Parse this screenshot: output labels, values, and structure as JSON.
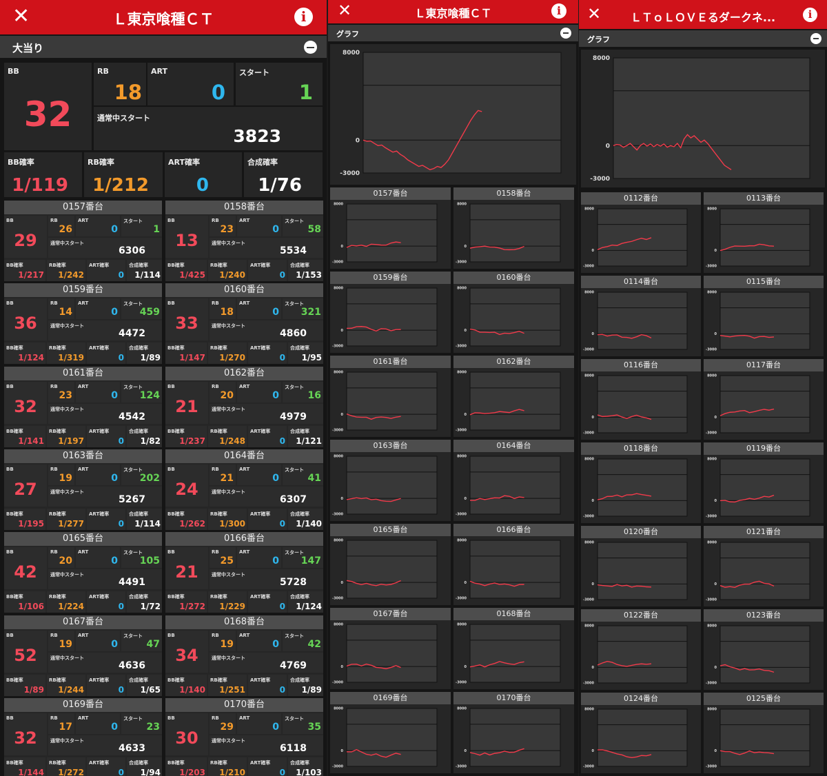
{
  "panel1": {
    "title": "Ｌ東京喰種ＣＴ",
    "section": "大当り",
    "main": {
      "bb_label": "BB",
      "bb": "32",
      "rb_label": "RB",
      "rb": "18",
      "art_label": "ART",
      "art": "0",
      "start_label": "スタート",
      "start": "1",
      "normal_label": "通常中スタート",
      "normal": "3823",
      "bbp_label": "BB確率",
      "bbp": "1/119",
      "rbp_label": "RB確率",
      "rbp": "1/212",
      "artp_label": "ART確率",
      "artp": "0",
      "synp_label": "合成確率",
      "synp": "1/76"
    },
    "machines": [
      {
        "name": "0157番台",
        "bb": "29",
        "rb": "26",
        "art": "0",
        "start": "1",
        "normal": "6306",
        "bbp": "1/217",
        "rbp": "1/242",
        "artp": "0",
        "synp": "1/114"
      },
      {
        "name": "0158番台",
        "bb": "13",
        "rb": "23",
        "art": "0",
        "start": "58",
        "normal": "5534",
        "bbp": "1/425",
        "rbp": "1/240",
        "artp": "0",
        "synp": "1/153"
      },
      {
        "name": "0159番台",
        "bb": "36",
        "rb": "14",
        "art": "0",
        "start": "459",
        "normal": "4472",
        "bbp": "1/124",
        "rbp": "1/319",
        "artp": "0",
        "synp": "1/89"
      },
      {
        "name": "0160番台",
        "bb": "33",
        "rb": "18",
        "art": "0",
        "start": "321",
        "normal": "4860",
        "bbp": "1/147",
        "rbp": "1/270",
        "artp": "0",
        "synp": "1/95"
      },
      {
        "name": "0161番台",
        "bb": "32",
        "rb": "23",
        "art": "0",
        "start": "124",
        "normal": "4542",
        "bbp": "1/141",
        "rbp": "1/197",
        "artp": "0",
        "synp": "1/82"
      },
      {
        "name": "0162番台",
        "bb": "21",
        "rb": "20",
        "art": "0",
        "start": "16",
        "normal": "4979",
        "bbp": "1/237",
        "rbp": "1/248",
        "artp": "0",
        "synp": "1/121"
      },
      {
        "name": "0163番台",
        "bb": "27",
        "rb": "19",
        "art": "0",
        "start": "202",
        "normal": "5267",
        "bbp": "1/195",
        "rbp": "1/277",
        "artp": "0",
        "synp": "1/114"
      },
      {
        "name": "0164番台",
        "bb": "24",
        "rb": "21",
        "art": "0",
        "start": "41",
        "normal": "6307",
        "bbp": "1/262",
        "rbp": "1/300",
        "artp": "0",
        "synp": "1/140"
      },
      {
        "name": "0165番台",
        "bb": "42",
        "rb": "20",
        "art": "0",
        "start": "105",
        "normal": "4491",
        "bbp": "1/106",
        "rbp": "1/224",
        "artp": "0",
        "synp": "1/72"
      },
      {
        "name": "0166番台",
        "bb": "21",
        "rb": "25",
        "art": "0",
        "start": "147",
        "normal": "5728",
        "bbp": "1/272",
        "rbp": "1/229",
        "artp": "0",
        "synp": "1/124"
      },
      {
        "name": "0167番台",
        "bb": "52",
        "rb": "19",
        "art": "0",
        "start": "47",
        "normal": "4636",
        "bbp": "1/89",
        "rbp": "1/244",
        "artp": "0",
        "synp": "1/65"
      },
      {
        "name": "0168番台",
        "bb": "34",
        "rb": "19",
        "art": "0",
        "start": "42",
        "normal": "4769",
        "bbp": "1/140",
        "rbp": "1/251",
        "artp": "0",
        "synp": "1/89"
      },
      {
        "name": "0169番台",
        "bb": "32",
        "rb": "17",
        "art": "0",
        "start": "23",
        "normal": "4633",
        "bbp": "1/144",
        "rbp": "1/272",
        "artp": "0",
        "synp": "1/94"
      },
      {
        "name": "0170番台",
        "bb": "30",
        "rb": "29",
        "art": "0",
        "start": "35",
        "normal": "6118",
        "bbp": "1/203",
        "rbp": "1/210",
        "artp": "0",
        "synp": "1/103"
      }
    ],
    "mini_labels": {
      "bb": "BB",
      "rb": "RB",
      "art": "ART",
      "start": "スタート",
      "normal": "通常中スタート",
      "bbp": "BB確率",
      "rbp": "RB確率",
      "artp": "ART確率",
      "synp": "合成確率"
    }
  },
  "panel2": {
    "title": "Ｌ東京喰種ＣＴ",
    "section": "グラフ",
    "chart_data": {
      "type": "line",
      "ylim": [
        -3000,
        8000
      ],
      "ticks": [
        "8000",
        "0",
        "-3000"
      ],
      "series": [
        {
          "values": [
            0,
            -100,
            -80,
            -300,
            -500,
            -450,
            -700,
            -900,
            -1100,
            -1000,
            -1300,
            -1500,
            -1800,
            -2000,
            -2200,
            -2400,
            -2300,
            -2500,
            -2700,
            -2600,
            -2400,
            -2500,
            -2200,
            -1800,
            -1200,
            -600,
            0,
            600,
            1200,
            1800,
            2300,
            2700,
            2600
          ]
        }
      ]
    },
    "machines": [
      "0157番台",
      "0158番台",
      "0159番台",
      "0160番台",
      "0161番台",
      "0162番台",
      "0163番台",
      "0164番台",
      "0165番台",
      "0166番台",
      "0167番台",
      "0168番台",
      "0169番台",
      "0170番台"
    ],
    "mini_ticks": [
      "8000",
      "0",
      "-3000"
    ]
  },
  "panel3": {
    "title": "ＬＴｏＬＯＶＥるダークネ...",
    "section": "グラフ",
    "chart_data": {
      "type": "line",
      "ylim": [
        -3000,
        8000
      ],
      "ticks": [
        "8000",
        "0",
        "-3000"
      ],
      "series": [
        {
          "values": [
            0,
            100,
            50,
            -150,
            0,
            200,
            -100,
            -400,
            0,
            200,
            -50,
            150,
            -100,
            100,
            -50,
            150,
            -150,
            0,
            -100,
            200,
            -200,
            600,
            1000,
            700,
            900,
            600,
            300,
            500,
            200,
            -200,
            -600,
            -1000,
            -1400,
            -1800,
            -2000,
            -2200
          ]
        }
      ]
    },
    "machines": [
      "0112番台",
      "0113番台",
      "0114番台",
      "0115番台",
      "0116番台",
      "0117番台",
      "0118番台",
      "0119番台",
      "0120番台",
      "0121番台",
      "0122番台",
      "0123番台",
      "0124番台",
      "0125番台"
    ],
    "mini_ticks": [
      "8000",
      "0",
      "-3000"
    ]
  }
}
